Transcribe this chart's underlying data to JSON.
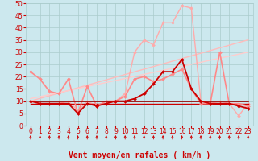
{
  "title": "",
  "xlabel": "Vent moyen/en rafales ( km/h )",
  "ylabel": "",
  "background_color": "#cce8ee",
  "grid_color": "#aacccc",
  "xlim": [
    -0.5,
    23.5
  ],
  "ylim": [
    0,
    50
  ],
  "yticks": [
    0,
    5,
    10,
    15,
    20,
    25,
    30,
    35,
    40,
    45,
    50
  ],
  "xticks": [
    0,
    1,
    2,
    3,
    4,
    5,
    6,
    7,
    8,
    9,
    10,
    11,
    12,
    13,
    14,
    15,
    16,
    17,
    18,
    19,
    20,
    21,
    22,
    23
  ],
  "series": [
    {
      "x": [
        0,
        1,
        2,
        3,
        4,
        5,
        6,
        7,
        8,
        9,
        10,
        11,
        12,
        13,
        14,
        15,
        16,
        17,
        18,
        19,
        20,
        21,
        22,
        23
      ],
      "y": [
        10,
        10,
        10,
        10,
        10,
        10,
        10,
        10,
        10,
        10,
        10,
        10,
        10,
        10,
        10,
        10,
        10,
        10,
        10,
        10,
        10,
        10,
        10,
        10
      ],
      "color": "#990000",
      "lw": 1.2,
      "marker": null,
      "zorder": 5
    },
    {
      "x": [
        0,
        1,
        2,
        3,
        4,
        5,
        6,
        7,
        8,
        9,
        10,
        11,
        12,
        13,
        14,
        15,
        16,
        17,
        18,
        19,
        20,
        21,
        22,
        23
      ],
      "y": [
        9,
        9,
        9,
        9,
        9,
        9,
        9,
        9,
        9,
        9,
        9,
        9,
        9,
        9,
        9,
        9,
        9,
        9,
        9,
        9,
        9,
        9,
        9,
        9
      ],
      "color": "#cc0000",
      "lw": 1.0,
      "marker": null,
      "zorder": 4
    },
    {
      "x": [
        0,
        1,
        2,
        3,
        4,
        5,
        6,
        7,
        8,
        9,
        10,
        11,
        12,
        13,
        14,
        15,
        16,
        17,
        18,
        19,
        20,
        21,
        22,
        23
      ],
      "y": [
        10,
        9,
        9,
        9,
        9,
        5,
        9,
        8,
        9,
        10,
        10,
        11,
        13,
        17,
        22,
        22,
        27,
        15,
        10,
        9,
        9,
        9,
        8,
        7
      ],
      "color": "#cc0000",
      "lw": 1.3,
      "marker": "D",
      "ms": 2.0,
      "zorder": 6
    },
    {
      "x": [
        0,
        23
      ],
      "y": [
        10,
        35
      ],
      "color": "#ffbbbb",
      "lw": 1.0,
      "marker": null,
      "zorder": 2
    },
    {
      "x": [
        0,
        23
      ],
      "y": [
        11,
        30
      ],
      "color": "#ffcccc",
      "lw": 1.0,
      "marker": null,
      "zorder": 2
    },
    {
      "x": [
        0,
        1,
        2,
        3,
        4,
        5,
        6,
        7,
        8,
        9,
        10,
        11,
        12,
        13,
        14,
        15,
        16,
        17,
        18,
        19,
        20,
        21,
        22,
        23
      ],
      "y": [
        22,
        19,
        14,
        13,
        19,
        5,
        16,
        8,
        10,
        10,
        12,
        19,
        20,
        18,
        19,
        21,
        23,
        15,
        9,
        9,
        30,
        9,
        9,
        8
      ],
      "color": "#ff8888",
      "lw": 1.2,
      "marker": "D",
      "ms": 2.0,
      "zorder": 4
    },
    {
      "x": [
        0,
        1,
        2,
        3,
        4,
        5,
        6,
        7,
        8,
        9,
        10,
        11,
        12,
        13,
        14,
        15,
        16,
        17,
        18,
        19,
        20,
        21,
        22,
        23
      ],
      "y": [
        10,
        9,
        9,
        9,
        10,
        6,
        10,
        8,
        10,
        10,
        13,
        30,
        35,
        33,
        42,
        42,
        49,
        48,
        10,
        9,
        10,
        9,
        4,
        9
      ],
      "color": "#ffaaaa",
      "lw": 1.0,
      "marker": "D",
      "ms": 2.0,
      "zorder": 3
    }
  ],
  "arrow_color": "#cc0000",
  "xlabel_color": "#cc0000",
  "xlabel_fontsize": 7,
  "tick_fontsize": 5.5,
  "tick_color": "#cc0000"
}
